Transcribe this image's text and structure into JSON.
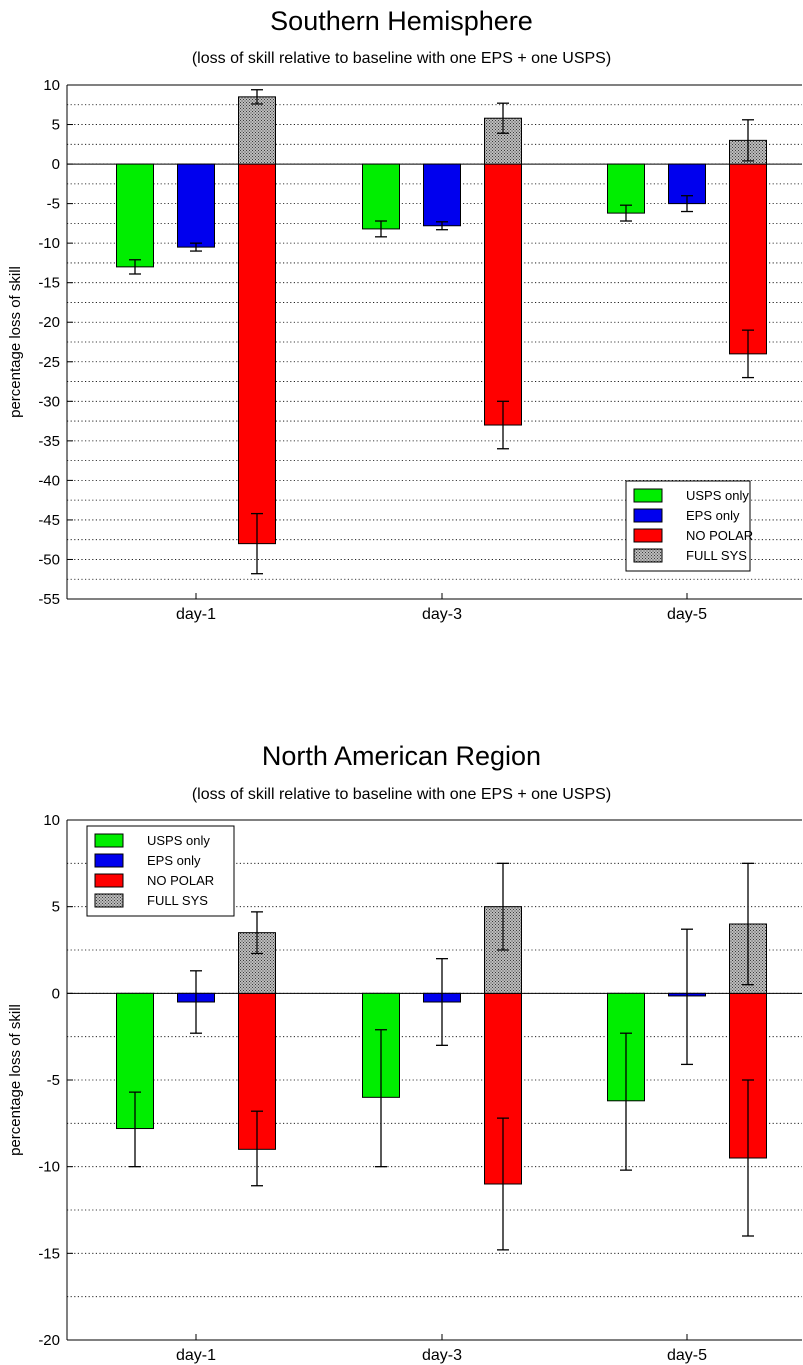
{
  "chart_data": [
    {
      "type": "bar",
      "title": "Southern Hemisphere",
      "subtitle": "(loss of skill relative to baseline with one EPS + one USPS)",
      "xlabel": "",
      "ylabel": "percentage loss of skill",
      "categories": [
        "day-1",
        "day-3",
        "day-5"
      ],
      "ylim": [
        -55,
        10
      ],
      "yticks": [
        10,
        5,
        0,
        -5,
        -10,
        -15,
        -20,
        -25,
        -30,
        -35,
        -40,
        -45,
        -50,
        -55
      ],
      "grid": "dotted horizontal",
      "legend_position": "bottom-right",
      "series": [
        {
          "name": "USPS only",
          "color": "#00ee00",
          "values": [
            -13,
            -8.2,
            -6.2
          ],
          "err_low": [
            -13.9,
            -9.2,
            -7.2
          ],
          "err_high": [
            -12.1,
            -7.2,
            -5.2
          ]
        },
        {
          "name": "EPS only",
          "color": "#0000ee",
          "values": [
            -10.5,
            -7.8,
            -5
          ],
          "err_low": [
            -11,
            -8.3,
            -6
          ],
          "err_high": [
            -10,
            -7.3,
            -4
          ]
        },
        {
          "name": "NO POLAR",
          "color": "#ff0000",
          "values": [
            -48,
            -33,
            -24
          ],
          "err_low": [
            -51.8,
            -36,
            -27
          ],
          "err_high": [
            -44.2,
            -30,
            -21
          ],
          "pattern": false
        },
        {
          "name": "FULL SYS",
          "color": "#888888",
          "values": [
            8.5,
            5.8,
            3
          ],
          "err_low": [
            7.6,
            3.9,
            0.4
          ],
          "err_high": [
            9.4,
            7.7,
            5.6
          ],
          "pattern": true
        }
      ]
    },
    {
      "type": "bar",
      "title": "North American Region",
      "subtitle": "(loss of skill relative to baseline with one EPS + one USPS)",
      "xlabel": "",
      "ylabel": "percentage loss of skill",
      "categories": [
        "day-1",
        "day-3",
        "day-5"
      ],
      "ylim": [
        -20,
        10
      ],
      "yticks": [
        10,
        5,
        0,
        -5,
        -10,
        -15,
        -20
      ],
      "grid": "dotted horizontal",
      "legend_position": "top-left",
      "series": [
        {
          "name": "USPS only",
          "color": "#00ee00",
          "values": [
            -7.8,
            -6,
            -6.2
          ],
          "err_low": [
            -10,
            -10,
            -10.2
          ],
          "err_high": [
            -5.7,
            -2.1,
            -2.3
          ]
        },
        {
          "name": "EPS only",
          "color": "#0000ee",
          "values": [
            -0.5,
            -0.5,
            -0.15
          ],
          "err_low": [
            -2.3,
            -3,
            -4.1
          ],
          "err_high": [
            1.3,
            2,
            3.7
          ]
        },
        {
          "name": "NO POLAR",
          "color": "#ff0000",
          "values": [
            -9,
            -11,
            -9.5
          ],
          "err_low": [
            -11.1,
            -14.8,
            -14
          ],
          "err_high": [
            -6.8,
            -7.2,
            -5
          ]
        },
        {
          "name": "FULL SYS",
          "color": "#888888",
          "values": [
            3.5,
            5,
            4
          ],
          "err_low": [
            2.3,
            2.5,
            0.5
          ],
          "err_high": [
            4.7,
            7.5,
            7.5
          ],
          "pattern": true
        }
      ]
    }
  ]
}
